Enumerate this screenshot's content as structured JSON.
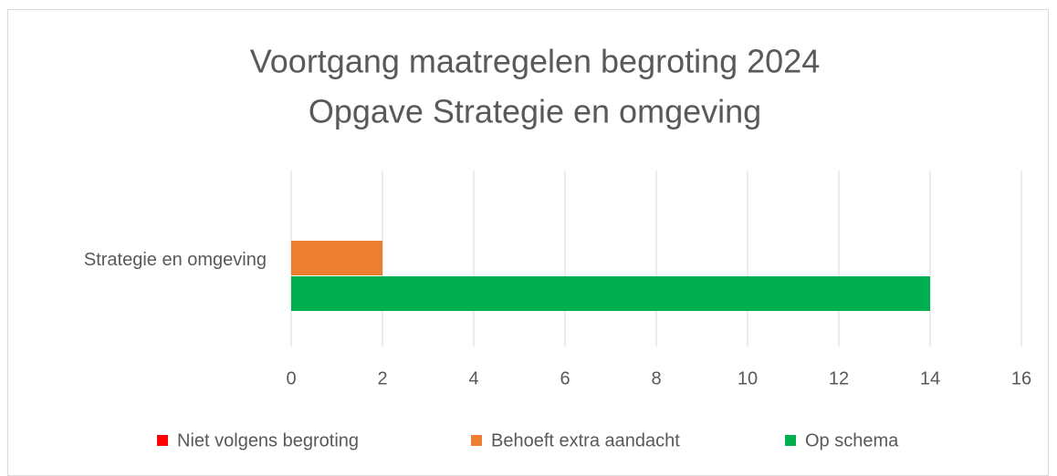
{
  "chart_data": {
    "type": "bar",
    "orientation": "horizontal",
    "title": "Voortgang maatregelen begroting 2024",
    "subtitle": "Opgave Strategie en omgeving",
    "categories": [
      "Strategie en omgeving"
    ],
    "series": [
      {
        "name": "Niet volgens begroting",
        "color": "#ff0000",
        "values": [
          0
        ]
      },
      {
        "name": "Behoeft extra aandacht",
        "color": "#ed7d31",
        "values": [
          2
        ]
      },
      {
        "name": "Op schema",
        "color": "#00b050",
        "values": [
          14
        ]
      }
    ],
    "xlim": [
      0,
      16
    ],
    "xticks": [
      0,
      2,
      4,
      6,
      8,
      10,
      12,
      14,
      16
    ],
    "grid": true,
    "legend": "bottom"
  }
}
